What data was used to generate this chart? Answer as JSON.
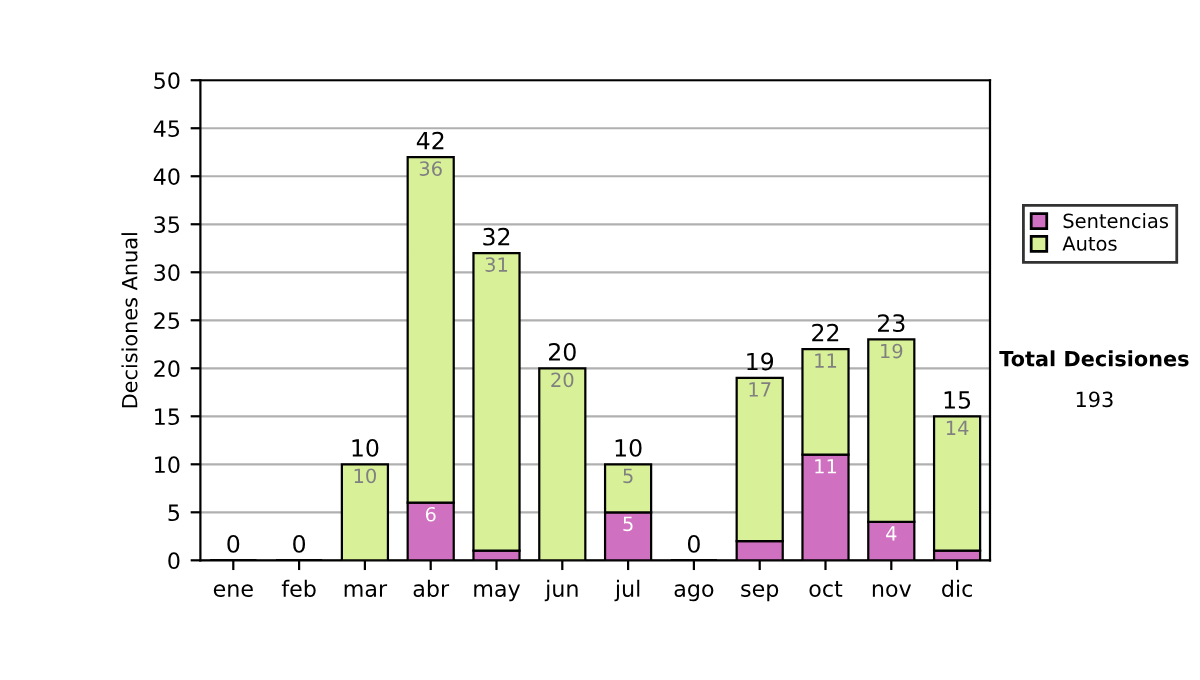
{
  "chart_data": {
    "type": "bar",
    "stacked": true,
    "ylabel": "Decisiones Anual",
    "categories": [
      "ene",
      "feb",
      "mar",
      "abr",
      "may",
      "jun",
      "jul",
      "ago",
      "sep",
      "oct",
      "nov",
      "dic"
    ],
    "series": [
      {
        "name": "Sentencias",
        "color": "#d070c0",
        "values": [
          0,
          0,
          0,
          6,
          1,
          0,
          5,
          0,
          2,
          11,
          4,
          1
        ],
        "value_labels": [
          null,
          null,
          null,
          "6",
          null,
          null,
          "5",
          null,
          null,
          "11",
          "4",
          null
        ]
      },
      {
        "name": "Autos",
        "color": "#d8f098",
        "values": [
          0,
          0,
          10,
          36,
          31,
          20,
          5,
          0,
          17,
          11,
          19,
          14
        ],
        "value_labels": [
          null,
          null,
          "10",
          "36",
          "31",
          "20",
          "5",
          null,
          "17",
          "11",
          "19",
          "14"
        ]
      }
    ],
    "totals": [
      "0",
      "0",
      "10",
      "42",
      "32",
      "20",
      "10",
      "0",
      "19",
      "22",
      "23",
      "15"
    ],
    "ylim": [
      0,
      50
    ],
    "yticks": [
      0,
      5,
      10,
      15,
      20,
      25,
      30,
      35,
      40,
      45,
      50
    ],
    "grid": "y",
    "legend": "right",
    "annotations": [
      "Total Decisiones",
      "193"
    ]
  }
}
